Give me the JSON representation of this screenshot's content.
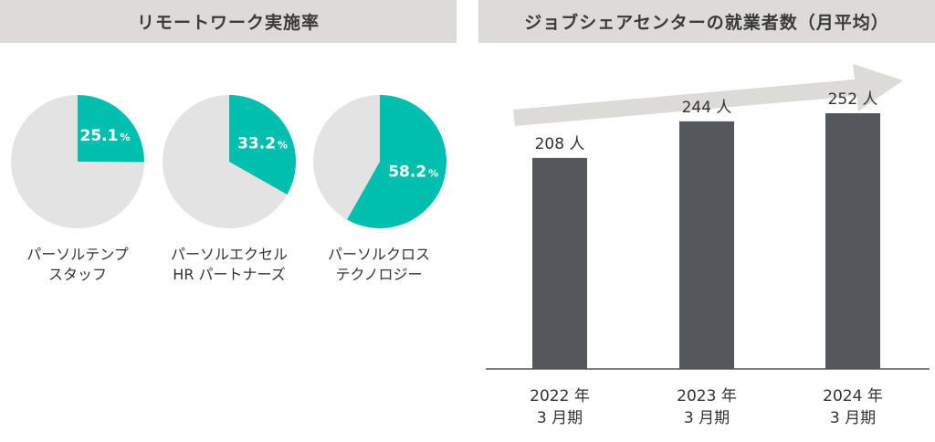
{
  "left_panel": {
    "title": "リモートワーク実施率"
  },
  "right_panel": {
    "title": "ジョブシェアセンターの就業者数（月平均）"
  },
  "chart_data": [
    {
      "type": "pie",
      "title": "リモートワーク実施率",
      "pies": [
        {
          "name_lines": [
            "パーソルテンプ",
            "スタッフ"
          ],
          "value": 25.1,
          "label_number": "25.1",
          "label_unit": "%"
        },
        {
          "name_lines": [
            "パーソルエクセル",
            "HR パートナーズ"
          ],
          "value": 33.2,
          "label_number": "33.2",
          "label_unit": "%"
        },
        {
          "name_lines": [
            "パーソルクロス",
            "テクノロジー"
          ],
          "value": 58.2,
          "label_number": "58.2",
          "label_unit": "%"
        }
      ],
      "colors": {
        "highlight": "#00bfae",
        "remainder": "#e3e3e3"
      }
    },
    {
      "type": "bar",
      "title": "ジョブシェアセンターの就業者数（月平均）",
      "categories": [
        [
          "2022 年",
          "3 月期"
        ],
        [
          "2023 年",
          "3 月期"
        ],
        [
          "2024 年",
          "3 月期"
        ]
      ],
      "values": [
        208,
        244,
        252
      ],
      "data_labels": [
        "208 人",
        "244 人",
        "252 人"
      ],
      "ylim": [
        0,
        270
      ],
      "colors": {
        "bar": "#54575c",
        "axis": "#555555",
        "arrow": "#dcdbd7"
      }
    }
  ]
}
